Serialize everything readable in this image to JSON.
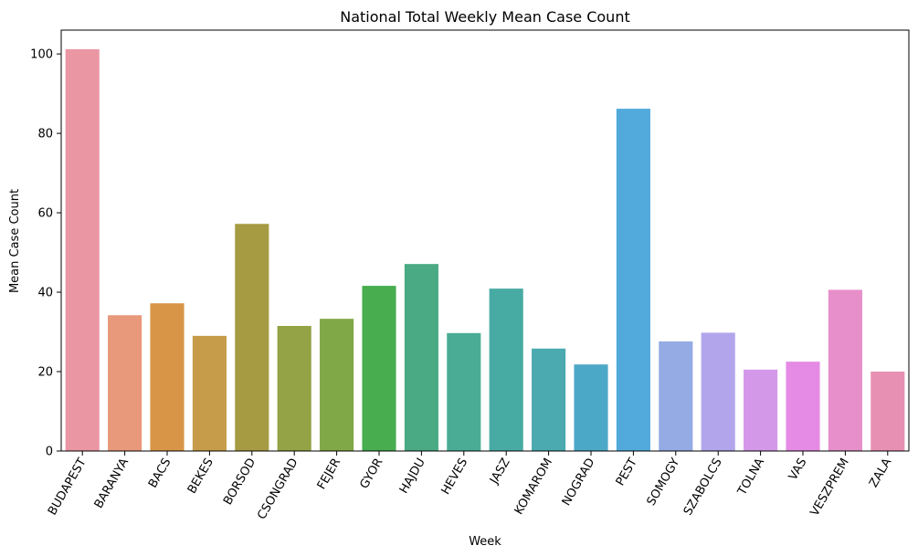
{
  "chart_data": {
    "type": "bar",
    "title": "National Total Weekly Mean Case Count",
    "xlabel": "Week",
    "ylabel": "Mean Case Count",
    "ylim": [
      0,
      106
    ],
    "yticks": [
      0,
      20,
      40,
      60,
      80,
      100
    ],
    "grid": false,
    "legend": "none",
    "categories": [
      "BUDAPEST",
      "BARANYA",
      "BACS",
      "BEKES",
      "BORSOD",
      "CSONGRAD",
      "FEJER",
      "GYOR",
      "HAJDU",
      "HEVES",
      "JASZ",
      "KOMAROM",
      "NOGRAD",
      "PEST",
      "SOMOGY",
      "SZABOLCS",
      "TOLNA",
      "VAS",
      "VESZPREM",
      "ZALA"
    ],
    "values": [
      101.2,
      34.2,
      37.2,
      29.0,
      57.2,
      31.5,
      33.3,
      41.6,
      47.1,
      29.7,
      40.9,
      25.8,
      21.8,
      86.2,
      27.6,
      29.8,
      20.5,
      22.5,
      40.6,
      20.0
    ],
    "colors": [
      "#ea96a3",
      "#e8987b",
      "#d99547",
      "#c69b4a",
      "#a69b43",
      "#93a345",
      "#81a846",
      "#47ad4f",
      "#4aaa83",
      "#4aac95",
      "#47aba3",
      "#4aaab0",
      "#4ca8c7",
      "#52aadc",
      "#94abe4",
      "#b3a5ec",
      "#d498e9",
      "#e58be5",
      "#e68fcb",
      "#e890b4"
    ]
  }
}
